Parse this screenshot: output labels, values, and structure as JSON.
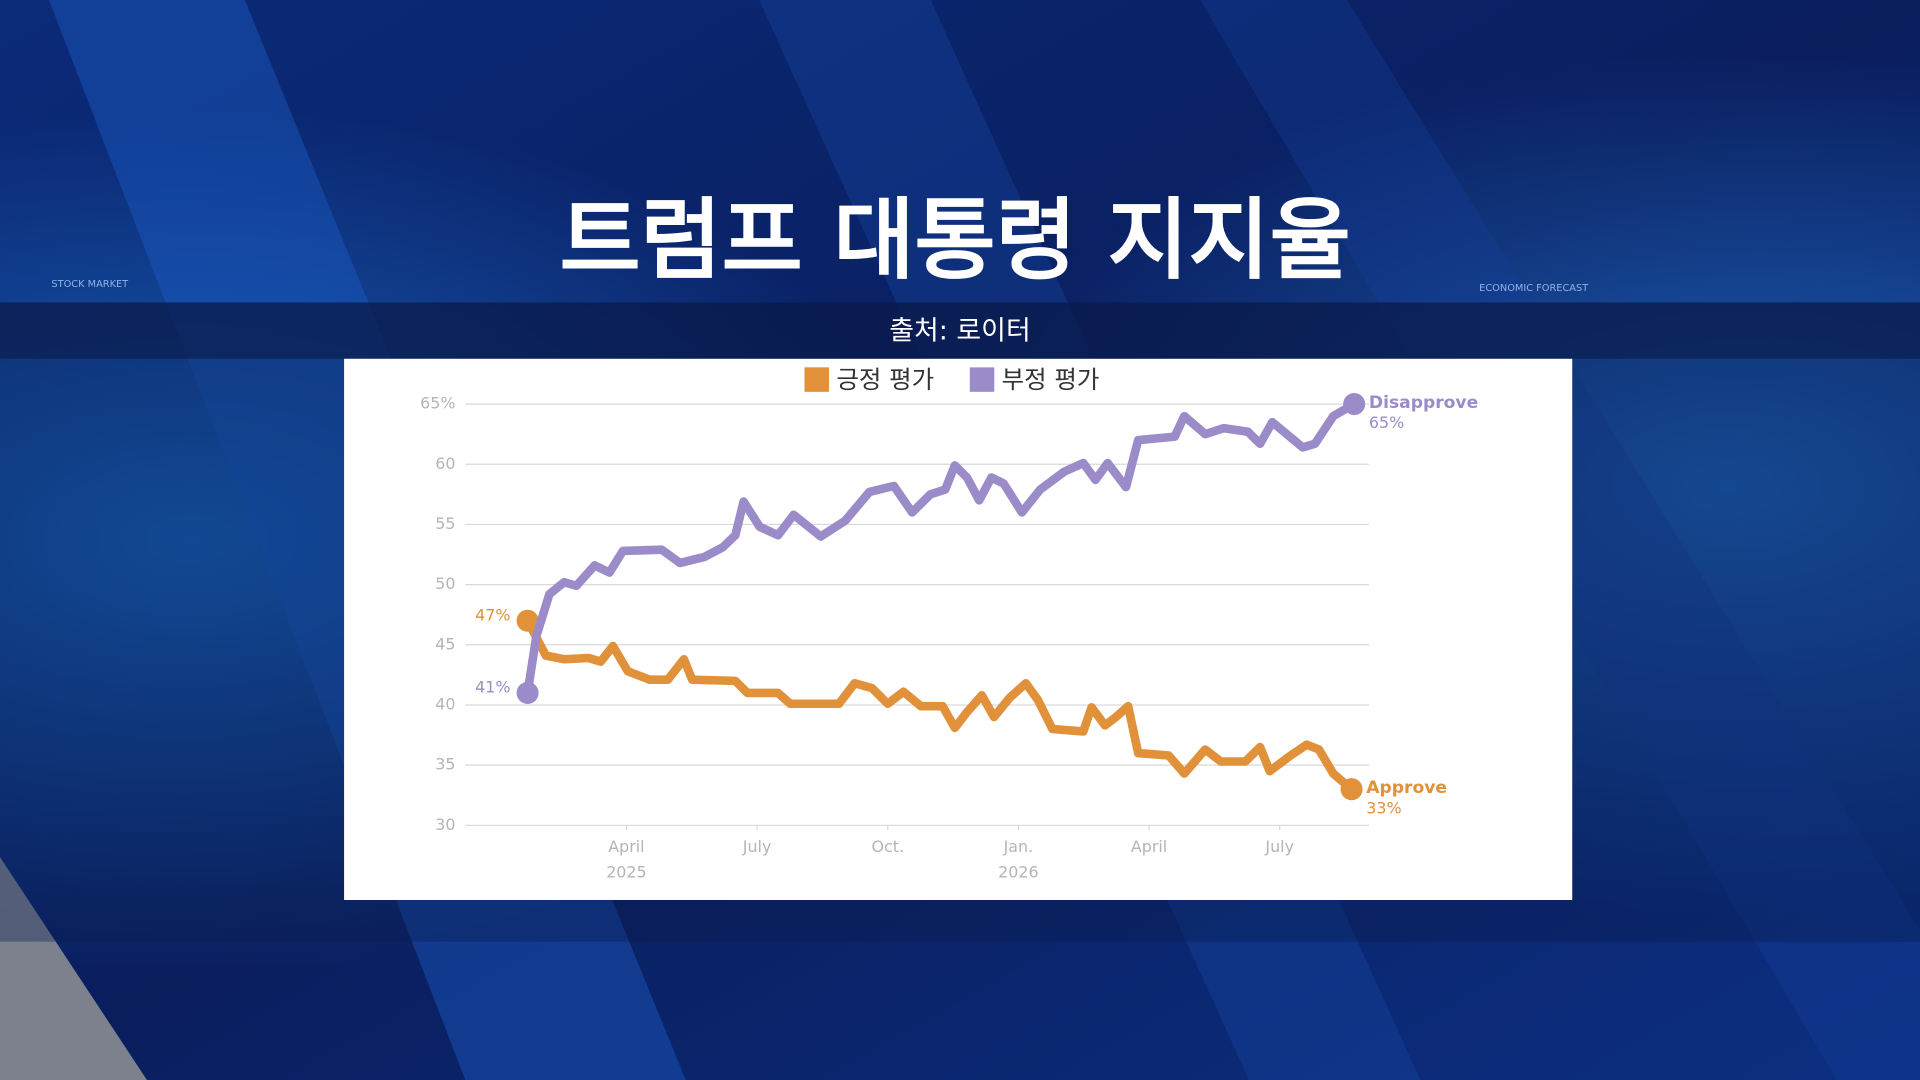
{
  "header": {
    "title": "트럼프 대통령 지지율",
    "source": "출처: 로이터"
  },
  "background_texts": [
    "STOCK MARKET",
    "ECONOMIC FORECAST"
  ],
  "chart_data": {
    "type": "line",
    "legend_position": "top",
    "grid": true,
    "xlim": [
      0.3,
      21.05
    ],
    "xticks": [
      {
        "value": 4,
        "label": "April"
      },
      {
        "value": 7,
        "label": "July"
      },
      {
        "value": 10,
        "label": "Oct."
      },
      {
        "value": 13,
        "label": "Jan."
      },
      {
        "value": 16,
        "label": "April"
      },
      {
        "value": 19,
        "label": "July"
      }
    ],
    "x_year_labels": [
      {
        "value": 4,
        "label": "2025"
      },
      {
        "value": 13,
        "label": "2026"
      }
    ],
    "ylim": [
      30,
      65
    ],
    "yticks": [
      30,
      35,
      40,
      45,
      50,
      55,
      60,
      {
        "value": 65,
        "label": "65%"
      }
    ],
    "series": [
      {
        "name": "긍정 평가",
        "end_label": "Approve",
        "color": "#e0913a",
        "x": [
          1.73,
          2.15,
          2.57,
          3.13,
          3.41,
          3.69,
          4.03,
          4.53,
          4.95,
          5.32,
          5.51,
          6.5,
          6.78,
          7.48,
          7.76,
          8.88,
          9.24,
          9.64,
          10.0,
          10.36,
          10.76,
          11.26,
          11.54,
          11.82,
          12.16,
          12.44,
          12.8,
          13.17,
          13.45,
          13.78,
          14.49,
          14.68,
          14.99,
          15.24,
          15.52,
          15.75,
          16.45,
          16.81,
          17.29,
          17.65,
          18.21,
          18.55,
          18.77,
          19.25,
          19.62,
          19.9,
          20.23,
          20.65
        ],
        "values": [
          47,
          44.1,
          43.8,
          43.9,
          43.6,
          44.9,
          42.8,
          42.1,
          42.1,
          43.8,
          42.1,
          42,
          41,
          41,
          40.1,
          40.1,
          41.8,
          41.4,
          40.1,
          41.1,
          39.9,
          39.9,
          38.1,
          39.4,
          40.8,
          39,
          40.6,
          41.8,
          40.4,
          38,
          37.8,
          39.8,
          38.3,
          39,
          39.9,
          36,
          35.8,
          34.3,
          36.3,
          35.3,
          35.3,
          36.5,
          34.5,
          35.8,
          36.7,
          36.3,
          34.3,
          33
        ],
        "value_labels": [
          "47%",
          null,
          null,
          null,
          null,
          null,
          null,
          null,
          null,
          null,
          null,
          null,
          null,
          null,
          null,
          null,
          null,
          null,
          null,
          null,
          null,
          null,
          null,
          null,
          null,
          null,
          null,
          null,
          null,
          null,
          null,
          null,
          null,
          null,
          null,
          null,
          null,
          null,
          null,
          null,
          null,
          null,
          null,
          null,
          null,
          null,
          null,
          "33%"
        ]
      },
      {
        "name": "부정 평가",
        "end_label": "Disapprove",
        "color": "#9b8cc9",
        "x": [
          1.73,
          1.93,
          2.23,
          2.57,
          2.85,
          3.27,
          3.61,
          3.92,
          4.81,
          5.23,
          5.79,
          6.21,
          6.5,
          6.69,
          7.06,
          7.48,
          7.84,
          8.46,
          9.02,
          9.58,
          10.14,
          10.56,
          10.98,
          11.32,
          11.54,
          11.82,
          12.1,
          12.38,
          12.66,
          13.08,
          13.5,
          14.06,
          14.49,
          14.77,
          15.05,
          15.47,
          15.75,
          16.59,
          16.81,
          17.29,
          17.71,
          18.27,
          18.55,
          18.83,
          19.53,
          19.81,
          20.23,
          20.71
        ],
        "values": [
          41,
          45.7,
          49.2,
          50.2,
          49.9,
          51.6,
          51,
          52.8,
          52.9,
          51.8,
          52.3,
          53.1,
          54.1,
          56.9,
          54.8,
          54.1,
          55.8,
          54,
          55.3,
          57.7,
          58.2,
          56,
          57.5,
          57.9,
          59.9,
          58.9,
          57,
          58.9,
          58.4,
          56,
          57.9,
          59.4,
          60.1,
          58.7,
          60.1,
          58.1,
          62,
          62.3,
          64,
          62.5,
          63,
          62.7,
          61.7,
          63.5,
          61.4,
          61.7,
          64,
          65
        ],
        "value_labels": [
          "41%",
          null,
          null,
          null,
          null,
          null,
          null,
          null,
          null,
          null,
          null,
          null,
          null,
          null,
          null,
          null,
          null,
          null,
          null,
          null,
          null,
          null,
          null,
          null,
          null,
          null,
          null,
          null,
          null,
          null,
          null,
          null,
          null,
          null,
          null,
          null,
          null,
          null,
          null,
          null,
          null,
          null,
          null,
          null,
          null,
          null,
          null,
          "65%"
        ]
      }
    ]
  }
}
